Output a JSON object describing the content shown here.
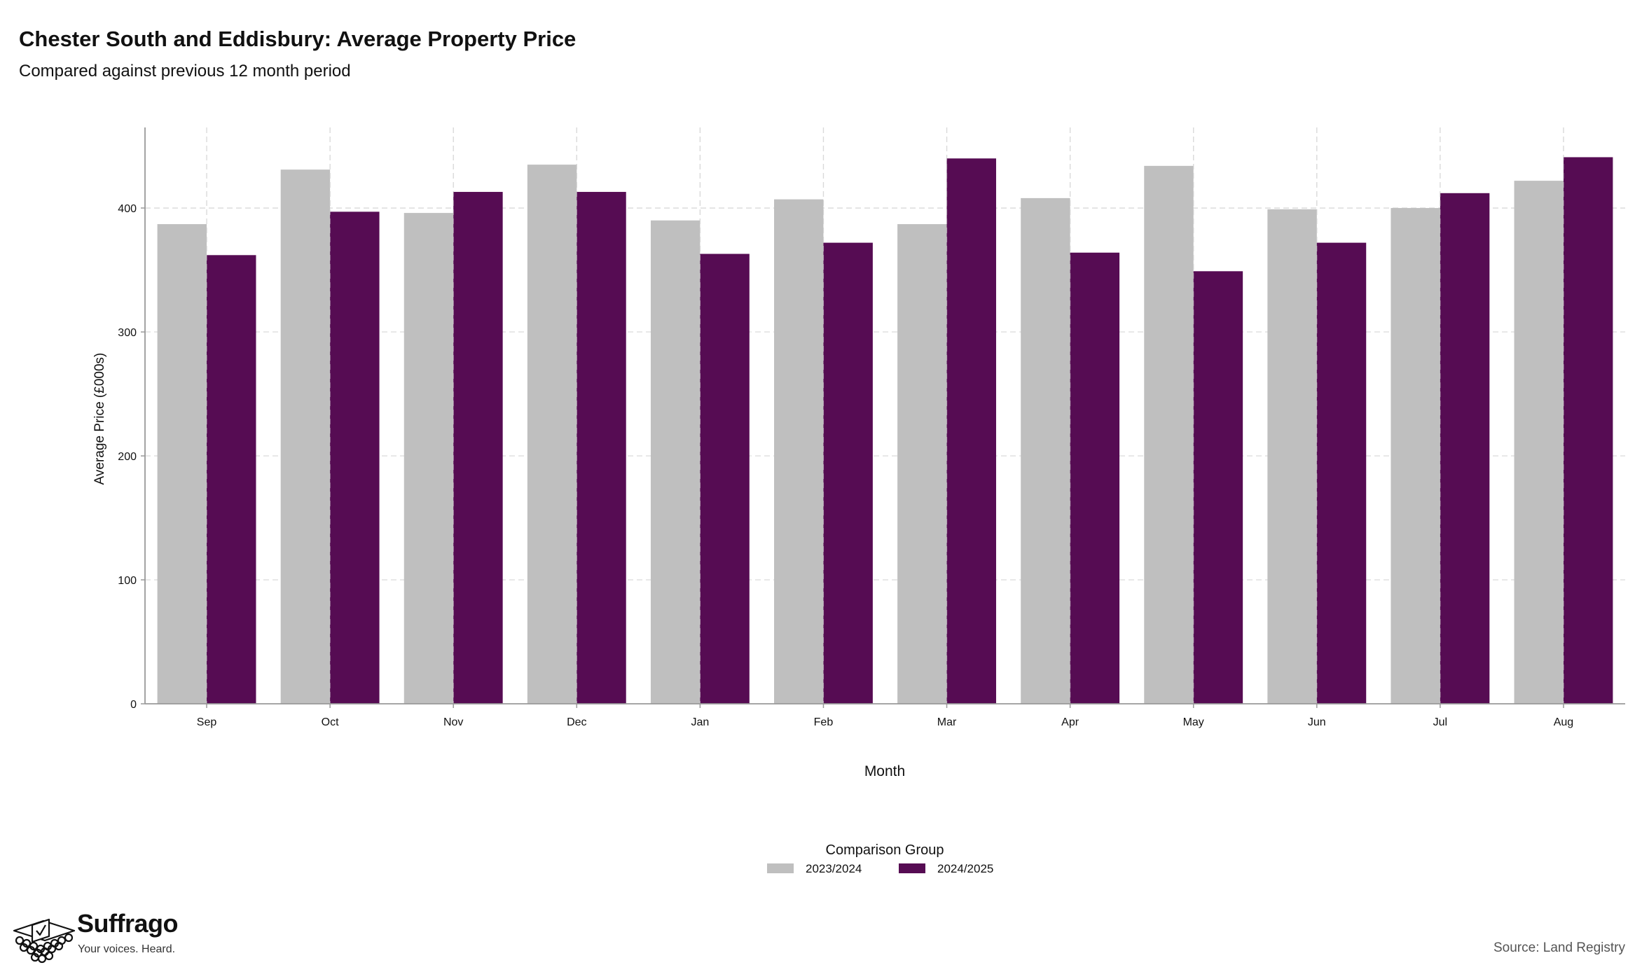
{
  "header": {
    "title": "Chester South and Eddisbury: Average Property Price",
    "subtitle": "Compared against previous 12 month period"
  },
  "chart_data": {
    "type": "bar",
    "xlabel": "Month",
    "ylabel": "Average Price (£000s)",
    "categories": [
      "Sep",
      "Oct",
      "Nov",
      "Dec",
      "Jan",
      "Feb",
      "Mar",
      "Apr",
      "May",
      "Jun",
      "Jul",
      "Aug"
    ],
    "series": [
      {
        "name": "2023/2024",
        "color": "#bfbfbf",
        "values": [
          387,
          431,
          396,
          435,
          390,
          407,
          387,
          408,
          434,
          399,
          400,
          422
        ]
      },
      {
        "name": "2024/2025",
        "color": "#560c53",
        "values": [
          362,
          397,
          413,
          413,
          363,
          372,
          440,
          364,
          349,
          372,
          412,
          441
        ]
      }
    ],
    "ylim": [
      0,
      465
    ],
    "yticks": [
      0,
      100,
      200,
      300,
      400
    ],
    "grid": true,
    "legend": {
      "title": "Comparison Group",
      "position": "bottom"
    }
  },
  "footer": {
    "brand": "Suffrago",
    "tagline": "Your voices. Heard.",
    "source": "Source: Land Registry",
    "logo_icon": "ballot-box-icon"
  }
}
